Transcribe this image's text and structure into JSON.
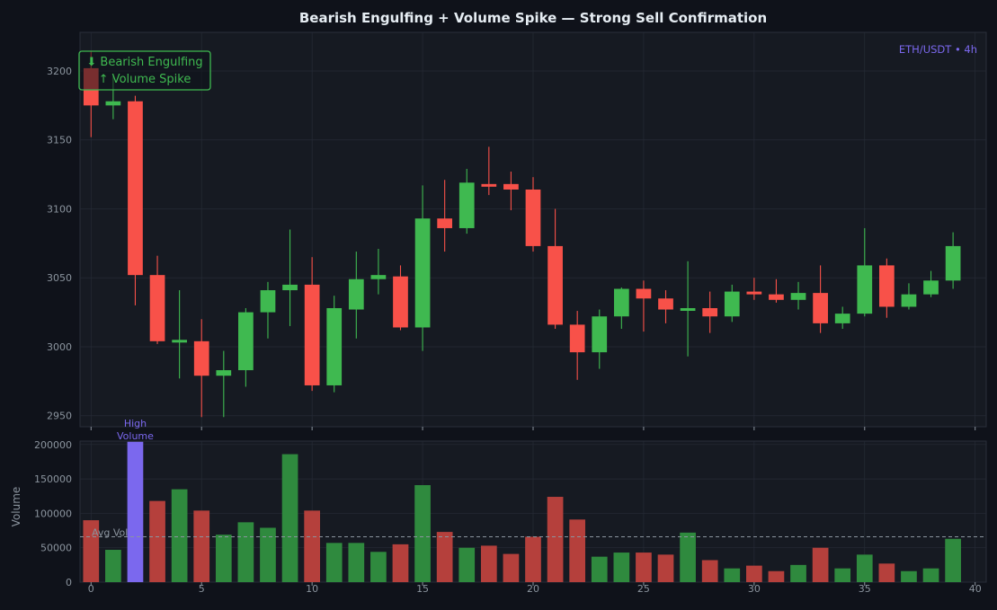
{
  "chart_data": [
    {
      "type": "candlestick",
      "title": "Bearish Engulfing + Volume Spike — Strong Sell Confirmation",
      "tag": "ETH/USDT • 4h",
      "annotation": [
        "⬇ Bearish Engulfing",
        "↑ Volume Spike"
      ],
      "x_ticks": [
        0,
        5,
        10,
        15,
        20,
        25,
        30,
        35,
        40
      ],
      "y_ticks": [
        2950,
        3000,
        3050,
        3100,
        3150,
        3200
      ],
      "xlim": [
        -0.5,
        40.5
      ],
      "ylim": [
        2942,
        3228
      ],
      "grid": true,
      "candles": [
        {
          "x": 0,
          "open": 3202,
          "high": 3214,
          "low": 3152,
          "close": 3175
        },
        {
          "x": 1,
          "open": 3175,
          "high": 3197,
          "low": 3165,
          "close": 3178
        },
        {
          "x": 2,
          "open": 3178,
          "high": 3182,
          "low": 3030,
          "close": 3052
        },
        {
          "x": 3,
          "open": 3052,
          "high": 3066,
          "low": 3002,
          "close": 3004
        },
        {
          "x": 4,
          "open": 3004,
          "high": 3041,
          "low": 2977,
          "close": 3005
        },
        {
          "x": 5,
          "open": 3004,
          "high": 3020,
          "low": 2949,
          "close": 2979
        },
        {
          "x": 6,
          "open": 2979,
          "high": 2997,
          "low": 2949,
          "close": 2983
        },
        {
          "x": 7,
          "open": 2983,
          "high": 3028,
          "low": 2971,
          "close": 3025
        },
        {
          "x": 8,
          "open": 3025,
          "high": 3047,
          "low": 3006,
          "close": 3041
        },
        {
          "x": 9,
          "open": 3041,
          "high": 3085,
          "low": 3015,
          "close": 3045
        },
        {
          "x": 10,
          "open": 3045,
          "high": 3065,
          "low": 2968,
          "close": 2972
        },
        {
          "x": 11,
          "open": 2972,
          "high": 3037,
          "low": 2967,
          "close": 3028
        },
        {
          "x": 12,
          "open": 3027,
          "high": 3069,
          "low": 3006,
          "close": 3049
        },
        {
          "x": 13,
          "open": 3049,
          "high": 3071,
          "low": 3038,
          "close": 3052
        },
        {
          "x": 14,
          "open": 3051,
          "high": 3059,
          "low": 3012,
          "close": 3014
        },
        {
          "x": 15,
          "open": 3014,
          "high": 3117,
          "low": 2997,
          "close": 3093
        },
        {
          "x": 16,
          "open": 3093,
          "high": 3121,
          "low": 3069,
          "close": 3086
        },
        {
          "x": 17,
          "open": 3086,
          "high": 3129,
          "low": 3082,
          "close": 3119
        },
        {
          "x": 18,
          "open": 3118,
          "high": 3145,
          "low": 3110,
          "close": 3117
        },
        {
          "x": 19,
          "open": 3118,
          "high": 3127,
          "low": 3099,
          "close": 3114
        },
        {
          "x": 20,
          "open": 3114,
          "high": 3123,
          "low": 3069,
          "close": 3073
        },
        {
          "x": 21,
          "open": 3073,
          "high": 3100,
          "low": 3013,
          "close": 3016
        },
        {
          "x": 22,
          "open": 3016,
          "high": 3026,
          "low": 2976,
          "close": 2996
        },
        {
          "x": 23,
          "open": 2996,
          "high": 3027,
          "low": 2984,
          "close": 3022
        },
        {
          "x": 24,
          "open": 3022,
          "high": 3043,
          "low": 3013,
          "close": 3042
        },
        {
          "x": 25,
          "open": 3042,
          "high": 3048,
          "low": 3011,
          "close": 3035
        },
        {
          "x": 26,
          "open": 3035,
          "high": 3041,
          "low": 3017,
          "close": 3027
        },
        {
          "x": 27,
          "open": 3027,
          "high": 3062,
          "low": 2993,
          "close": 3028
        },
        {
          "x": 28,
          "open": 3028,
          "high": 3040,
          "low": 3010,
          "close": 3022
        },
        {
          "x": 29,
          "open": 3022,
          "high": 3045,
          "low": 3018,
          "close": 3040
        },
        {
          "x": 30,
          "open": 3040,
          "high": 3050,
          "low": 3034,
          "close": 3038
        },
        {
          "x": 31,
          "open": 3038,
          "high": 3049,
          "low": 3032,
          "close": 3034
        },
        {
          "x": 32,
          "open": 3034,
          "high": 3047,
          "low": 3027,
          "close": 3039
        },
        {
          "x": 33,
          "open": 3039,
          "high": 3059,
          "low": 3010,
          "close": 3017
        },
        {
          "x": 34,
          "open": 3017,
          "high": 3029,
          "low": 3013,
          "close": 3024
        },
        {
          "x": 35,
          "open": 3024,
          "high": 3086,
          "low": 3022,
          "close": 3059
        },
        {
          "x": 36,
          "open": 3059,
          "high": 3064,
          "low": 3021,
          "close": 3029
        },
        {
          "x": 37,
          "open": 3029,
          "high": 3046,
          "low": 3027,
          "close": 3038
        },
        {
          "x": 38,
          "open": 3038,
          "high": 3055,
          "low": 3036,
          "close": 3048
        },
        {
          "x": 39,
          "open": 3048,
          "high": 3083,
          "low": 3042,
          "close": 3073
        }
      ]
    },
    {
      "type": "bar",
      "ylabel": "Volume",
      "x_ticks": [
        0,
        5,
        10,
        15,
        20,
        25,
        30,
        35,
        40
      ],
      "y_ticks": [
        0,
        50000,
        100000,
        150000,
        200000
      ],
      "ylim": [
        0,
        205000
      ],
      "avg_label": "Avg Vol",
      "avg_value": 66000,
      "highlight_label": [
        "High",
        "Volume"
      ],
      "highlight_index": 2,
      "values": [
        90000,
        47000,
        204000,
        118000,
        135000,
        104000,
        69000,
        87000,
        79000,
        186000,
        104000,
        57000,
        57000,
        44000,
        55000,
        141000,
        73000,
        50000,
        53000,
        41000,
        66000,
        124000,
        91000,
        37000,
        43000,
        43000,
        40000,
        72000,
        32000,
        20000,
        24000,
        16000,
        25000,
        50000,
        20000,
        40000,
        27000,
        16000,
        20000,
        63000
      ]
    }
  ],
  "colors": {
    "background": "#0f121a",
    "panel": "#161a22",
    "bull": "#3fb950",
    "bear": "#f85149",
    "bull_volume": "#2f8a3e",
    "bear_volume": "#b5403c",
    "highlight": "#7b68ee",
    "accent": "#7b68ee",
    "text": "#e6edf3",
    "muted": "#8b949e",
    "grid": "#262b36",
    "annotation_border": "#3fb950"
  }
}
